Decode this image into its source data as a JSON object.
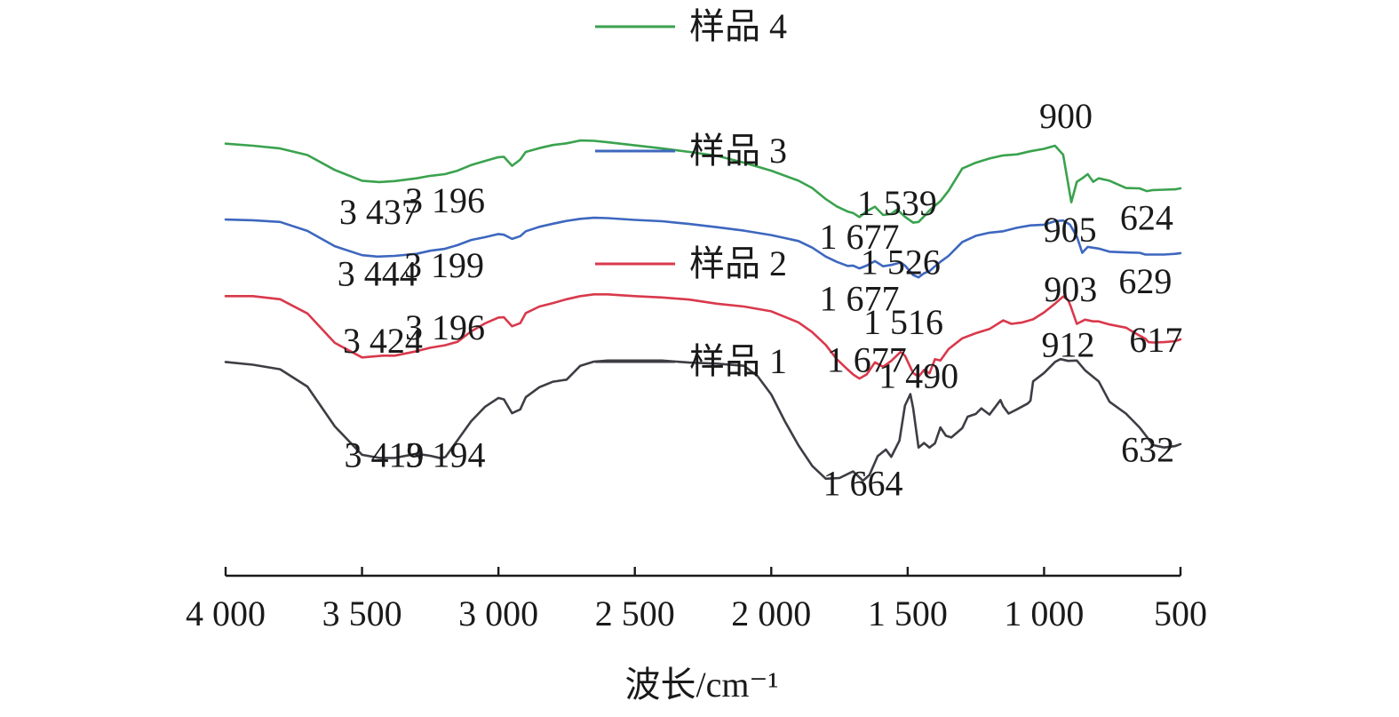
{
  "chart_data": {
    "type": "line",
    "xlabel": "波长/cm⁻¹",
    "xlim": [
      4000,
      500
    ],
    "x_reversed": true,
    "xticks": [
      4000,
      3500,
      3000,
      2500,
      2000,
      1500,
      1000,
      500
    ],
    "xtick_labels": [
      "4 000",
      "3 500",
      "3 000",
      "2 500",
      "2 000",
      "1 500",
      "1 000",
      "500"
    ],
    "y_axis_visible": false,
    "ylim": [
      0,
      100
    ],
    "grid": false,
    "legend_placement": "inline, center",
    "legend": [
      {
        "name": "样品 4",
        "series_index": 3
      },
      {
        "name": "样品 3",
        "series_index": 2
      },
      {
        "name": "样品 2",
        "series_index": 1
      },
      {
        "name": "样品 1",
        "series_index": 0
      }
    ],
    "series": [
      {
        "name": "样品 1",
        "color": "#3d3d44",
        "x": [
          4000,
          3900,
          3800,
          3700,
          3600,
          3500,
          3437,
          3380,
          3300,
          3250,
          3210,
          3194,
          3150,
          3100,
          3050,
          3000,
          2980,
          2950,
          2920,
          2900,
          2850,
          2800,
          2750,
          2700,
          2650,
          2600,
          2500,
          2400,
          2300,
          2200,
          2100,
          2050,
          2000,
          1950,
          1900,
          1850,
          1800,
          1750,
          1700,
          1664,
          1640,
          1610,
          1580,
          1560,
          1530,
          1510,
          1490,
          1480,
          1460,
          1440,
          1420,
          1400,
          1380,
          1360,
          1340,
          1300,
          1280,
          1250,
          1230,
          1200,
          1160,
          1150,
          1130,
          1100,
          1060,
          1050,
          1040,
          1000,
          960,
          940,
          912,
          880,
          850,
          800,
          760,
          700,
          650,
          600,
          560,
          520,
          500
        ],
        "y": [
          77.6,
          76.8,
          75.5,
          70.5,
          59.0,
          50.8,
          49.9,
          49.9,
          51.1,
          50.5,
          49.8,
          50.2,
          55.0,
          60.5,
          64.6,
          67.2,
          66.8,
          62.8,
          63.9,
          67.4,
          70.3,
          71.9,
          72.5,
          76.5,
          77.7,
          78.0,
          78.0,
          78.0,
          77.4,
          77.1,
          76.5,
          73.5,
          68.2,
          60.5,
          53.5,
          47.6,
          43.9,
          44.1,
          46.0,
          43.3,
          45.0,
          50.4,
          52.3,
          50.2,
          54.9,
          65.0,
          68.3,
          64.3,
          52.9,
          54.2,
          52.9,
          54.1,
          58.7,
          56.3,
          55.8,
          58.5,
          61.8,
          62.6,
          64.2,
          62.4,
          66.6,
          64.8,
          62.7,
          63.9,
          65.6,
          66.4,
          72.0,
          74.4,
          77.6,
          78.4,
          77.9,
          78.0,
          75.2,
          72.0,
          66.1,
          62.7,
          58.7,
          53.6,
          52.9,
          53.3,
          53.9
        ]
      },
      {
        "name": "样品 2",
        "color": "#d9394c",
        "x": [
          4000,
          3900,
          3800,
          3700,
          3600,
          3500,
          3424,
          3380,
          3300,
          3250,
          3196,
          3150,
          3100,
          3050,
          3000,
          2980,
          2950,
          2920,
          2900,
          2850,
          2800,
          2750,
          2700,
          2650,
          2600,
          2500,
          2400,
          2300,
          2200,
          2100,
          2000,
          1900,
          1850,
          1800,
          1760,
          1720,
          1700,
          1677,
          1650,
          1620,
          1590,
          1560,
          1526,
          1510,
          1480,
          1460,
          1440,
          1420,
          1400,
          1380,
          1350,
          1300,
          1250,
          1200,
          1150,
          1120,
          1080,
          1040,
          1000,
          960,
          930,
          912,
          903,
          880,
          850,
          820,
          800,
          760,
          700,
          650,
          629,
          617,
          600,
          560,
          520,
          500
        ],
        "y": [
          96.6,
          96.6,
          95.7,
          91.6,
          83.1,
          78.9,
          79.4,
          79.4,
          80.7,
          81.7,
          82.4,
          83.4,
          86.4,
          88.7,
          90.4,
          90.5,
          87.9,
          88.8,
          91.7,
          93.6,
          94.6,
          95.7,
          96.6,
          97.1,
          97.1,
          96.6,
          96.2,
          95.6,
          94.4,
          93.6,
          92.2,
          89.0,
          86.2,
          82.5,
          78.4,
          75.4,
          74.0,
          72.8,
          74.0,
          77.5,
          76.2,
          77.9,
          80.5,
          79.4,
          74.4,
          73.3,
          75.3,
          74.3,
          78.4,
          78.0,
          81.3,
          84.4,
          85.9,
          87.1,
          89.6,
          88.6,
          89.0,
          89.9,
          91.9,
          94.4,
          96.5,
          95.5,
          93.8,
          88.6,
          89.8,
          89.3,
          89.3,
          88.4,
          87.5,
          85.2,
          84.3,
          83.3,
          83.2,
          83.3,
          83.6,
          84.1
        ]
      },
      {
        "name": "样品 3",
        "color": "#3d67bf",
        "x": [
          4000,
          3900,
          3800,
          3700,
          3600,
          3500,
          3444,
          3380,
          3300,
          3250,
          3199,
          3150,
          3100,
          3050,
          3000,
          2980,
          2950,
          2920,
          2900,
          2850,
          2800,
          2750,
          2700,
          2650,
          2600,
          2500,
          2400,
          2300,
          2200,
          2100,
          2000,
          1900,
          1850,
          1800,
          1760,
          1720,
          1700,
          1677,
          1650,
          1620,
          1590,
          1560,
          1526,
          1510,
          1480,
          1460,
          1440,
          1420,
          1400,
          1380,
          1350,
          1300,
          1250,
          1200,
          1150,
          1100,
          1050,
          1000,
          960,
          930,
          905,
          880,
          860,
          840,
          800,
          760,
          700,
          650,
          629,
          600,
          560,
          520,
          500
        ],
        "y": [
          118.7,
          118.5,
          118.0,
          115.4,
          111.0,
          108.4,
          108.0,
          108.2,
          108.8,
          109.7,
          110.2,
          111.3,
          112.8,
          113.6,
          114.5,
          114.3,
          113.1,
          113.9,
          115.3,
          116.6,
          117.5,
          118.3,
          118.9,
          119.2,
          119.1,
          118.6,
          118.2,
          117.4,
          116.5,
          115.5,
          114.2,
          112.5,
          110.6,
          108.0,
          106.5,
          105.3,
          105.4,
          104.6,
          105.4,
          106.7,
          105.2,
          105.6,
          106.3,
          105.4,
          102.7,
          102.0,
          103.2,
          103.8,
          105.2,
          106.5,
          108.2,
          112.2,
          114.0,
          114.9,
          115.3,
          116.3,
          117.0,
          117.2,
          118.2,
          118.4,
          117.2,
          113.8,
          109.1,
          110.8,
          110.3,
          109.4,
          109.2,
          109.1,
          108.6,
          108.6,
          108.6,
          108.8,
          109.0
        ]
      },
      {
        "name": "样品 4",
        "color": "#3aa24e",
        "x": [
          4000,
          3900,
          3800,
          3700,
          3600,
          3500,
          3437,
          3380,
          3300,
          3250,
          3196,
          3150,
          3100,
          3050,
          3000,
          2980,
          2950,
          2920,
          2900,
          2850,
          2800,
          2750,
          2700,
          2650,
          2600,
          2500,
          2400,
          2300,
          2200,
          2100,
          2000,
          1900,
          1850,
          1800,
          1760,
          1720,
          1700,
          1677,
          1650,
          1620,
          1590,
          1560,
          1539,
          1510,
          1480,
          1460,
          1440,
          1420,
          1400,
          1380,
          1350,
          1300,
          1250,
          1200,
          1150,
          1100,
          1050,
          1000,
          960,
          930,
          900,
          880,
          860,
          840,
          820,
          800,
          760,
          700,
          650,
          624,
          600,
          560,
          520,
          500
        ],
        "y": [
          140.6,
          140.0,
          139.2,
          137.3,
          133.0,
          129.9,
          129.5,
          129.8,
          130.6,
          131.3,
          131.8,
          132.8,
          134.4,
          135.6,
          136.7,
          136.8,
          134.2,
          136.0,
          138.2,
          139.3,
          140.2,
          140.7,
          141.5,
          141.4,
          141.0,
          140.1,
          139.2,
          138.2,
          137.1,
          135.1,
          132.8,
          129.9,
          127.8,
          124.6,
          122.5,
          121.0,
          120.6,
          119.4,
          121.1,
          122.4,
          120.0,
          120.3,
          121.6,
          119.5,
          117.8,
          118.0,
          119.6,
          121.3,
          122.7,
          124.0,
          127.0,
          133.4,
          135.1,
          136.3,
          137.2,
          137.5,
          138.4,
          139.1,
          140.0,
          137.4,
          123.7,
          129.6,
          130.6,
          131.8,
          129.6,
          130.6,
          129.9,
          127.8,
          127.7,
          126.9,
          127.2,
          127.3,
          127.4,
          127.7
        ]
      }
    ],
    "annotations": [
      {
        "text": "3 437",
        "x": 3437,
        "y": 117.5
      },
      {
        "text": "3 196",
        "x": 3196,
        "y": 120.8
      },
      {
        "text": "1 539",
        "x": 1539,
        "y": 120.0
      },
      {
        "text": "1 677",
        "x": 1677,
        "y": 110.3
      },
      {
        "text": "900",
        "x": 920,
        "y": 145.1
      },
      {
        "text": "905",
        "x": 905,
        "y": 112.3
      },
      {
        "text": "624",
        "x": 624,
        "y": 115.8
      },
      {
        "text": "3 444",
        "x": 3444,
        "y": 99.6
      },
      {
        "text": "3 199",
        "x": 3199,
        "y": 102.0
      },
      {
        "text": "1 526",
        "x": 1526,
        "y": 102.9
      },
      {
        "text": "1 677",
        "x": 1677,
        "y": 92.4
      },
      {
        "text": "903",
        "x": 903,
        "y": 95.1
      },
      {
        "text": "629",
        "x": 629,
        "y": 97.5
      },
      {
        "text": "3 424",
        "x": 3424,
        "y": 80.3
      },
      {
        "text": "3 196",
        "x": 3196,
        "y": 84.1
      },
      {
        "text": "1 516",
        "x": 1516,
        "y": 85.7
      },
      {
        "text": "1 677",
        "x": 1650,
        "y": 74.7
      },
      {
        "text": "912",
        "x": 912,
        "y": 79.1
      },
      {
        "text": "617",
        "x": 590,
        "y": 80.5
      },
      {
        "text": "1 490",
        "x": 1460,
        "y": 70.1
      },
      {
        "text": "3 419",
        "x": 3419,
        "y": 47.3
      },
      {
        "text": "3 194",
        "x": 3194,
        "y": 47.3
      },
      {
        "text": "1 664",
        "x": 1664,
        "y": 39.1
      },
      {
        "text": "632",
        "x": 620,
        "y": 48.9
      }
    ]
  }
}
